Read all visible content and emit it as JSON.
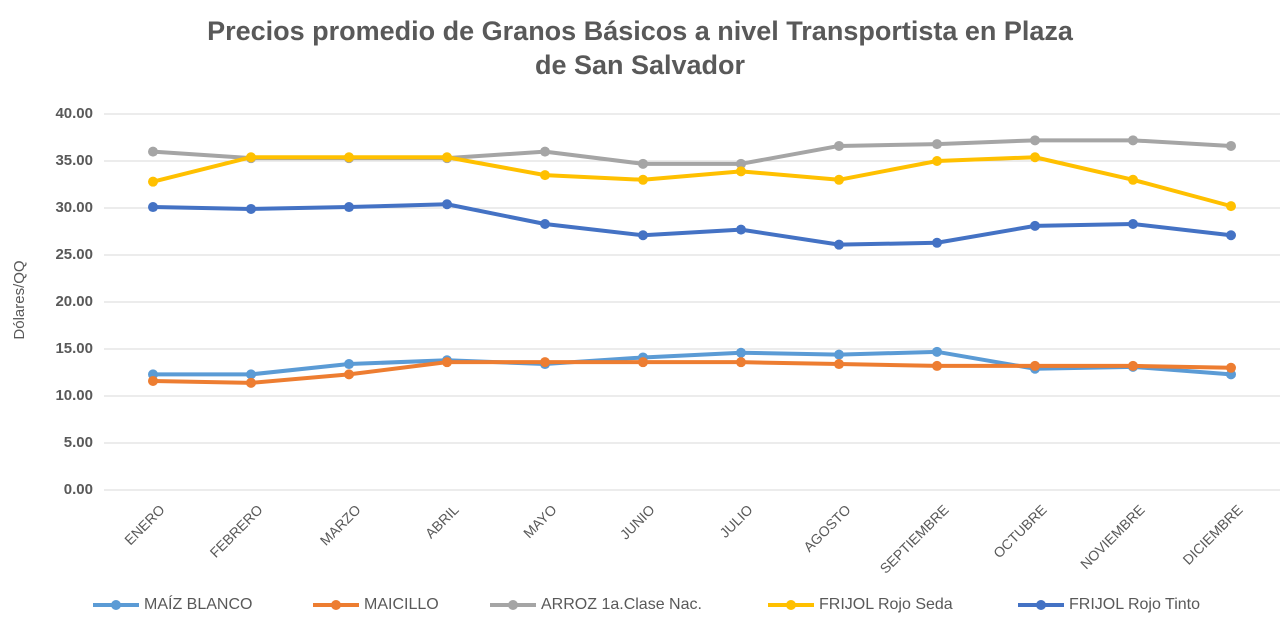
{
  "chart_data": {
    "type": "line",
    "title": "Precios promedio de Granos Básicos a nivel Transportista en Plaza de San Salvador",
    "y_label": "Dólares/QQ",
    "categories": [
      "ENERO",
      "FEBRERO",
      "MARZO",
      "ABRIL",
      "MAYO",
      "JUNIO",
      "JULIO",
      "AGOSTO",
      "SEPTIEMBRE",
      "OCTUBRE",
      "NOVIEMBRE",
      "DICIEMBRE"
    ],
    "series": [
      {
        "name": "MAÍZ BLANCO",
        "color": "#5b9bd5",
        "values": [
          12.3,
          12.3,
          13.4,
          13.8,
          13.4,
          14.1,
          14.6,
          14.4,
          14.7,
          12.9,
          13.1,
          12.3
        ]
      },
      {
        "name": "MAICILLO",
        "color": "#ed7d31",
        "values": [
          11.6,
          11.4,
          12.3,
          13.6,
          13.6,
          13.6,
          13.6,
          13.4,
          13.2,
          13.2,
          13.2,
          13.0
        ]
      },
      {
        "name": "ARROZ 1a.Clase Nac.",
        "color": "#a5a5a5",
        "values": [
          36.0,
          35.3,
          35.3,
          35.3,
          36.0,
          34.7,
          34.7,
          36.6,
          36.8,
          37.2,
          37.2,
          36.6
        ]
      },
      {
        "name": "FRIJOL Rojo Seda",
        "color": "#ffc000",
        "values": [
          32.8,
          35.4,
          35.4,
          35.4,
          33.5,
          33.0,
          33.9,
          33.0,
          35.0,
          35.4,
          33.0,
          30.2
        ]
      },
      {
        "name": "FRIJOL Rojo Tinto",
        "color": "#4472c4",
        "values": [
          30.1,
          29.9,
          30.1,
          30.4,
          28.3,
          27.1,
          27.7,
          26.1,
          26.3,
          28.1,
          28.3,
          27.1
        ]
      }
    ],
    "ylim": [
      0,
      40
    ],
    "yticks": [
      {
        "value": 0,
        "label": "0.00"
      },
      {
        "value": 5,
        "label": "5.00"
      },
      {
        "value": 10,
        "label": "10.00"
      },
      {
        "value": 15,
        "label": "15.00"
      },
      {
        "value": 20,
        "label": "20.00"
      },
      {
        "value": 25,
        "label": "25.00"
      },
      {
        "value": 30,
        "label": "30.00"
      },
      {
        "value": 35,
        "label": "35.00"
      },
      {
        "value": 40,
        "label": "40.00"
      }
    ],
    "grid": true,
    "legend": "bottom"
  }
}
